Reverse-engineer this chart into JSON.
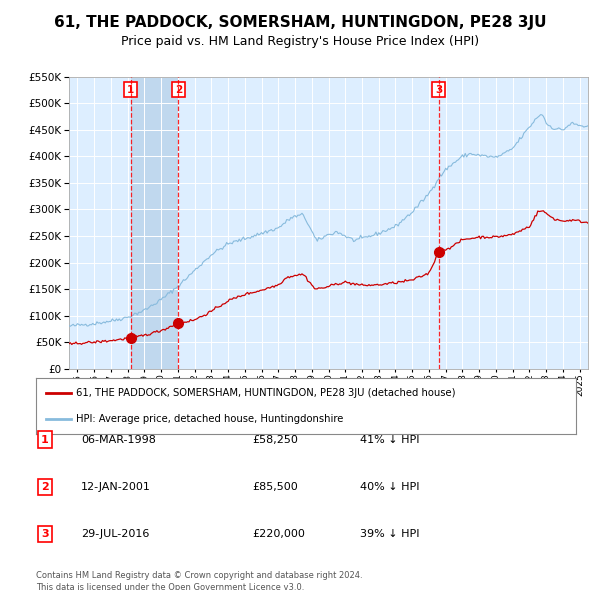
{
  "title": "61, THE PADDOCK, SOMERSHAM, HUNTINGDON, PE28 3JU",
  "subtitle": "Price paid vs. HM Land Registry's House Price Index (HPI)",
  "title_fontsize": 11,
  "subtitle_fontsize": 9,
  "hpi_line_color": "#88bbdd",
  "red_line_color": "#cc0000",
  "red_dot_color": "#cc0000",
  "sale_dates": [
    1998.18,
    2001.03,
    2016.58
  ],
  "sale_prices": [
    58250,
    85500,
    220000
  ],
  "sale_labels": [
    "1",
    "2",
    "3"
  ],
  "legend_line1": "61, THE PADDOCK, SOMERSHAM, HUNTINGDON, PE28 3JU (detached house)",
  "legend_line2": "HPI: Average price, detached house, Huntingdonshire",
  "table_rows": [
    [
      "1",
      "06-MAR-1998",
      "£58,250",
      "41% ↓ HPI"
    ],
    [
      "2",
      "12-JAN-2001",
      "£85,500",
      "40% ↓ HPI"
    ],
    [
      "3",
      "29-JUL-2016",
      "£220,000",
      "39% ↓ HPI"
    ]
  ],
  "footnote1": "Contains HM Land Registry data © Crown copyright and database right 2024.",
  "footnote2": "This data is licensed under the Open Government Licence v3.0.",
  "ylim": [
    0,
    550000
  ],
  "xlim": [
    1994.5,
    2025.5
  ],
  "background_color": "#ffffff",
  "plot_bg_color": "#ddeeff",
  "shade_color": "#c0d8ee"
}
